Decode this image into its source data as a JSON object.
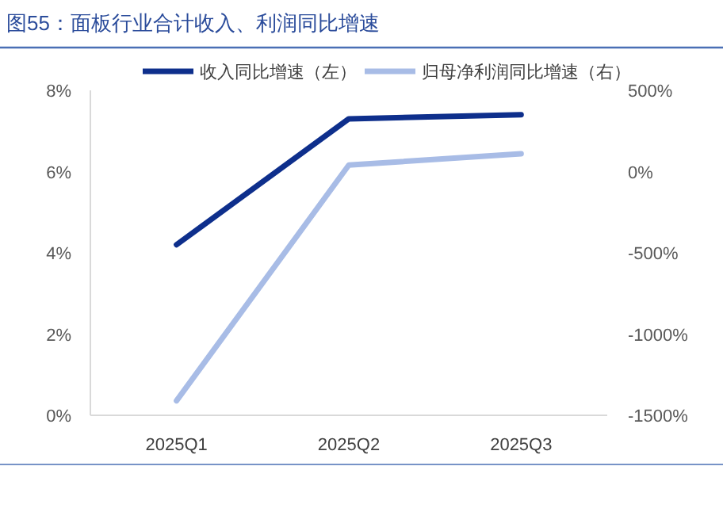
{
  "chart_data": {
    "type": "line",
    "title": "图55：面板行业合计收入、利润同比增速",
    "categories": [
      "2025Q1",
      "2025Q2",
      "2025Q3"
    ],
    "series": [
      {
        "name": "收入同比增速（左）",
        "color": "#0e2f8c",
        "values": [
          4.2,
          7.3,
          7.4
        ]
      },
      {
        "name": "归母净利润同比增速（右）",
        "color": "#a8bce6",
        "values": [
          -1410,
          40,
          110
        ],
        "axis": "y2"
      }
    ],
    "ylim": [
      0,
      8
    ],
    "yticks": [
      {
        "value": 0,
        "label": "0%"
      },
      {
        "value": 2,
        "label": "2%"
      },
      {
        "value": 4,
        "label": "4%"
      },
      {
        "value": 6,
        "label": "6%"
      },
      {
        "value": 8,
        "label": "8%"
      }
    ],
    "y2lim": [
      -1500,
      500
    ],
    "y2ticks": [
      {
        "value": -1500,
        "label": "-1500%"
      },
      {
        "value": -1000,
        "label": "-1000%"
      },
      {
        "value": -500,
        "label": "-500%"
      },
      {
        "value": 0,
        "label": "0%"
      },
      {
        "value": 500,
        "label": "500%"
      }
    ],
    "legend": "top"
  }
}
